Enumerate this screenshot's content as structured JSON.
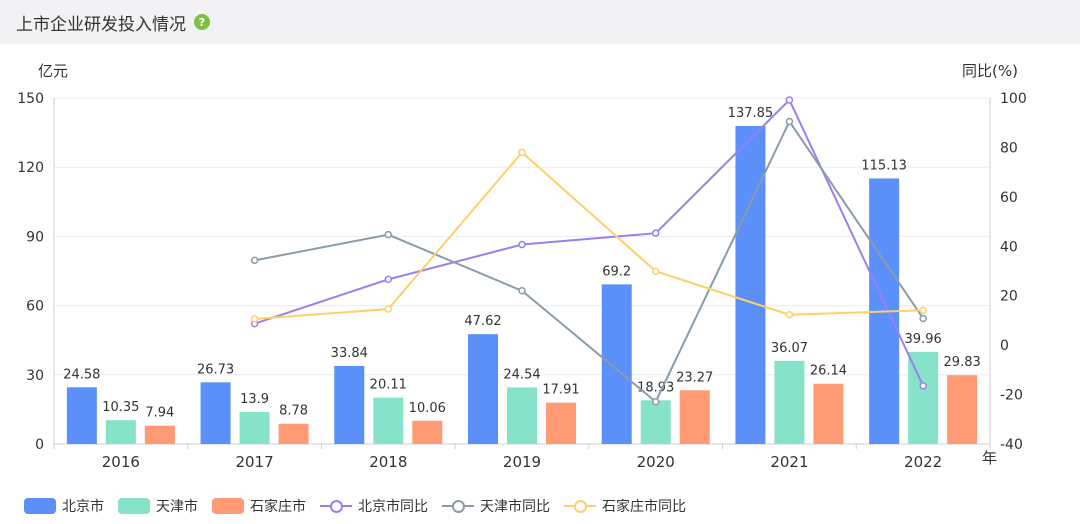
{
  "header": {
    "title": "上市企业研发投入情况",
    "help_glyph": "?"
  },
  "chart_data": {
    "type": "bar",
    "categories": [
      "2016",
      "2017",
      "2018",
      "2019",
      "2020",
      "2021",
      "2022"
    ],
    "xlabel": "年",
    "ylabel": "亿元",
    "y2label": "同比(%)",
    "ylim": [
      0,
      150
    ],
    "yticks": [
      0,
      30,
      60,
      90,
      120,
      150
    ],
    "y2lim": [
      -40,
      100
    ],
    "y2ticks": [
      -40,
      -20,
      0,
      20,
      40,
      60,
      80,
      100
    ],
    "grid": true,
    "legend_position": "bottom-left",
    "bar_series": [
      {
        "name": "北京市",
        "color": "#5b8ff9",
        "values": [
          24.58,
          26.73,
          33.84,
          47.62,
          69.2,
          137.85,
          115.13
        ],
        "labels": [
          "24.58",
          "26.73",
          "33.84",
          "47.62",
          "69.2",
          "137.85",
          "115.13"
        ]
      },
      {
        "name": "天津市",
        "color": "#86e3c9",
        "values": [
          10.35,
          13.9,
          20.11,
          24.54,
          18.93,
          36.07,
          39.96
        ],
        "labels": [
          "10.35",
          "13.9",
          "20.11",
          "24.54",
          "18.93",
          "36.07",
          "39.96"
        ]
      },
      {
        "name": "石家庄市",
        "color": "#ff9a74",
        "values": [
          7.94,
          8.78,
          10.06,
          17.91,
          23.27,
          26.14,
          29.83
        ],
        "labels": [
          "7.94",
          "8.78",
          "10.06",
          "17.91",
          "23.27",
          "26.14",
          "29.83"
        ]
      }
    ],
    "line_series": [
      {
        "name": "北京市同比",
        "color": "#9b7ff0",
        "values": [
          null,
          8.7,
          26.6,
          40.7,
          45.3,
          99.2,
          -16.5
        ]
      },
      {
        "name": "天津市同比",
        "color": "#8a9bab",
        "values": [
          null,
          34.3,
          44.7,
          22.0,
          -22.9,
          90.5,
          10.8
        ]
      },
      {
        "name": "石家庄市同比",
        "color": "#fdd06b",
        "values": [
          null,
          10.6,
          14.6,
          78.0,
          29.9,
          12.3,
          14.1
        ]
      }
    ]
  }
}
